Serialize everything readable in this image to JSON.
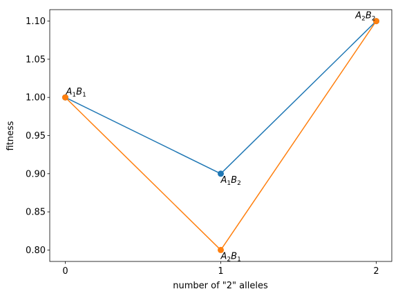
{
  "chart_data": {
    "type": "line",
    "xlabel": "number of \"2\" alleles",
    "ylabel": "fitness",
    "title": "",
    "xlim": [
      -0.1,
      2.1
    ],
    "ylim": [
      0.785,
      1.115
    ],
    "xticks": [
      "0",
      "1",
      "2"
    ],
    "yticks": [
      "0.80",
      "0.85",
      "0.90",
      "0.95",
      "1.00",
      "1.05",
      "1.10"
    ],
    "grid": false,
    "series": [
      {
        "color": "#1f77b4",
        "x": [
          0,
          1,
          2
        ],
        "y": [
          1.0,
          0.9,
          1.1
        ]
      },
      {
        "color": "#ff7f0e",
        "x": [
          0,
          1,
          2
        ],
        "y": [
          1.0,
          0.8,
          1.1
        ]
      }
    ],
    "annotations": [
      {
        "base1": "A",
        "sub1": "1",
        "base2": "B",
        "sub2": "1",
        "x": 0,
        "y": 1.0,
        "anchor": "start"
      },
      {
        "base1": "A",
        "sub1": "1",
        "base2": "B",
        "sub2": "2",
        "x": 1,
        "y": 0.9,
        "anchor": "start"
      },
      {
        "base1": "A",
        "sub1": "2",
        "base2": "B",
        "sub2": "1",
        "x": 1,
        "y": 0.8,
        "anchor": "start"
      },
      {
        "base1": "A",
        "sub1": "2",
        "base2": "B",
        "sub2": "2",
        "x": 2,
        "y": 1.1,
        "anchor": "end"
      }
    ]
  }
}
